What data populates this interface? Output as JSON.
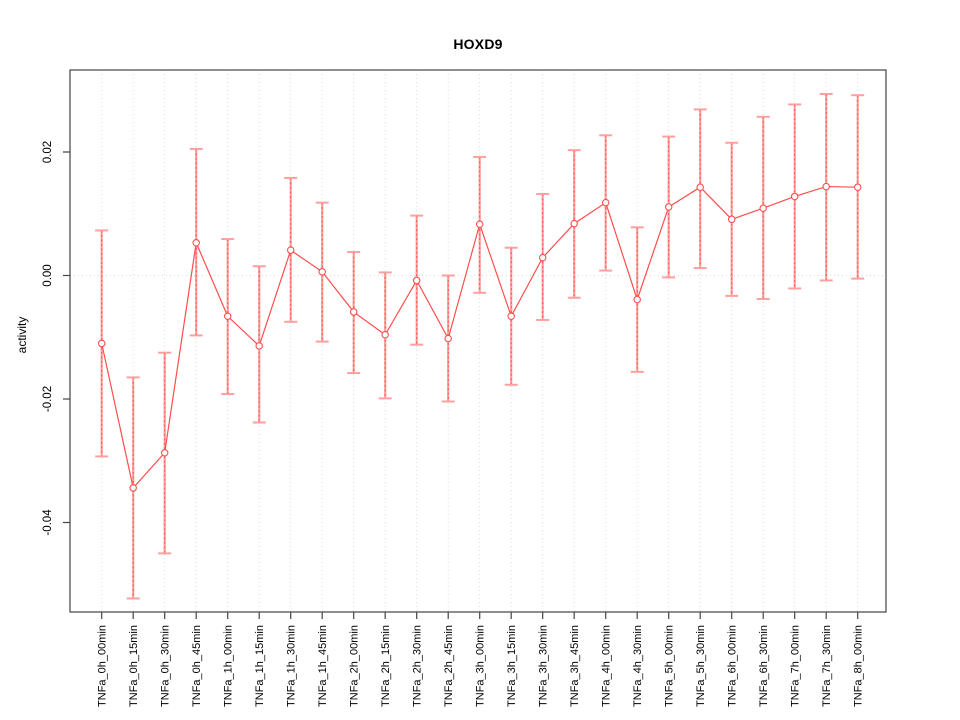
{
  "chart_data": {
    "type": "line",
    "title": "HOXD9",
    "ylabel": "activity",
    "legend": "none",
    "grid": "dotted vertical gridline at every category; dotted horizontal line at y=0",
    "marker": "open-circle",
    "error_bars": true,
    "ylim": [
      -0.0547,
      0.0333
    ],
    "yticks": [
      {
        "label": "0.02",
        "value": 0.02
      },
      {
        "label": "0.00",
        "value": 0.0
      },
      {
        "label": "-0.02",
        "value": -0.02
      },
      {
        "label": "-0.04",
        "value": -0.04
      }
    ],
    "categories": [
      "TNFa_0h_00min",
      "TNFa_0h_15min",
      "TNFa_0h_30min",
      "TNFa_0h_45min",
      "TNFa_1h_00min",
      "TNFa_1h_15min",
      "TNFa_1h_30min",
      "TNFa_1h_45min",
      "TNFa_2h_00min",
      "TNFa_2h_15min",
      "TNFa_2h_30min",
      "TNFa_2h_45min",
      "TNFa_3h_00min",
      "TNFa_3h_15min",
      "TNFa_3h_30min",
      "TNFa_3h_45min",
      "TNFa_4h_00min",
      "TNFa_4h_30min",
      "TNFa_5h_00min",
      "TNFa_5h_30min",
      "TNFa_6h_00min",
      "TNFa_6h_30min",
      "TNFa_7h_00min",
      "TNFa_7h_30min",
      "TNFa_8h_00min"
    ],
    "series": [
      {
        "name": "activity",
        "values": [
          -0.011,
          -0.0344,
          -0.0287,
          0.0053,
          -0.0066,
          -0.0114,
          0.0041,
          0.0006,
          -0.0059,
          -0.0096,
          -0.0008,
          -0.0102,
          0.0083,
          -0.0066,
          0.0029,
          0.0084,
          0.0118,
          -0.0039,
          0.0111,
          0.0143,
          0.0091,
          0.0109,
          0.0128,
          0.0144,
          0.0143
        ],
        "upper": [
          0.0073,
          -0.0165,
          -0.0125,
          0.0205,
          0.0059,
          0.0015,
          0.0158,
          0.0118,
          0.0038,
          0.0005,
          0.0097,
          0.0,
          0.0192,
          0.0045,
          0.0132,
          0.0203,
          0.0227,
          0.0078,
          0.0225,
          0.0269,
          0.0215,
          0.0257,
          0.0277,
          0.0294,
          0.0292
        ],
        "lower": [
          -0.0293,
          -0.0523,
          -0.045,
          -0.0097,
          -0.0192,
          -0.0238,
          -0.0075,
          -0.0107,
          -0.0158,
          -0.0199,
          -0.0112,
          -0.0204,
          -0.0028,
          -0.0177,
          -0.0072,
          -0.0036,
          0.0008,
          -0.0156,
          -0.0003,
          0.0012,
          -0.0033,
          -0.0038,
          -0.0021,
          -0.0008,
          -0.0005
        ]
      }
    ],
    "colors": {
      "line": "#ff4d4d",
      "marker": "#ff4d4d",
      "error_bar": "#ff9f9f",
      "error_bar_dash": "#ff4d4d",
      "grid": "#d9d9d9",
      "frame": "#444444",
      "text": "#000000",
      "background": "#ffffff"
    }
  }
}
